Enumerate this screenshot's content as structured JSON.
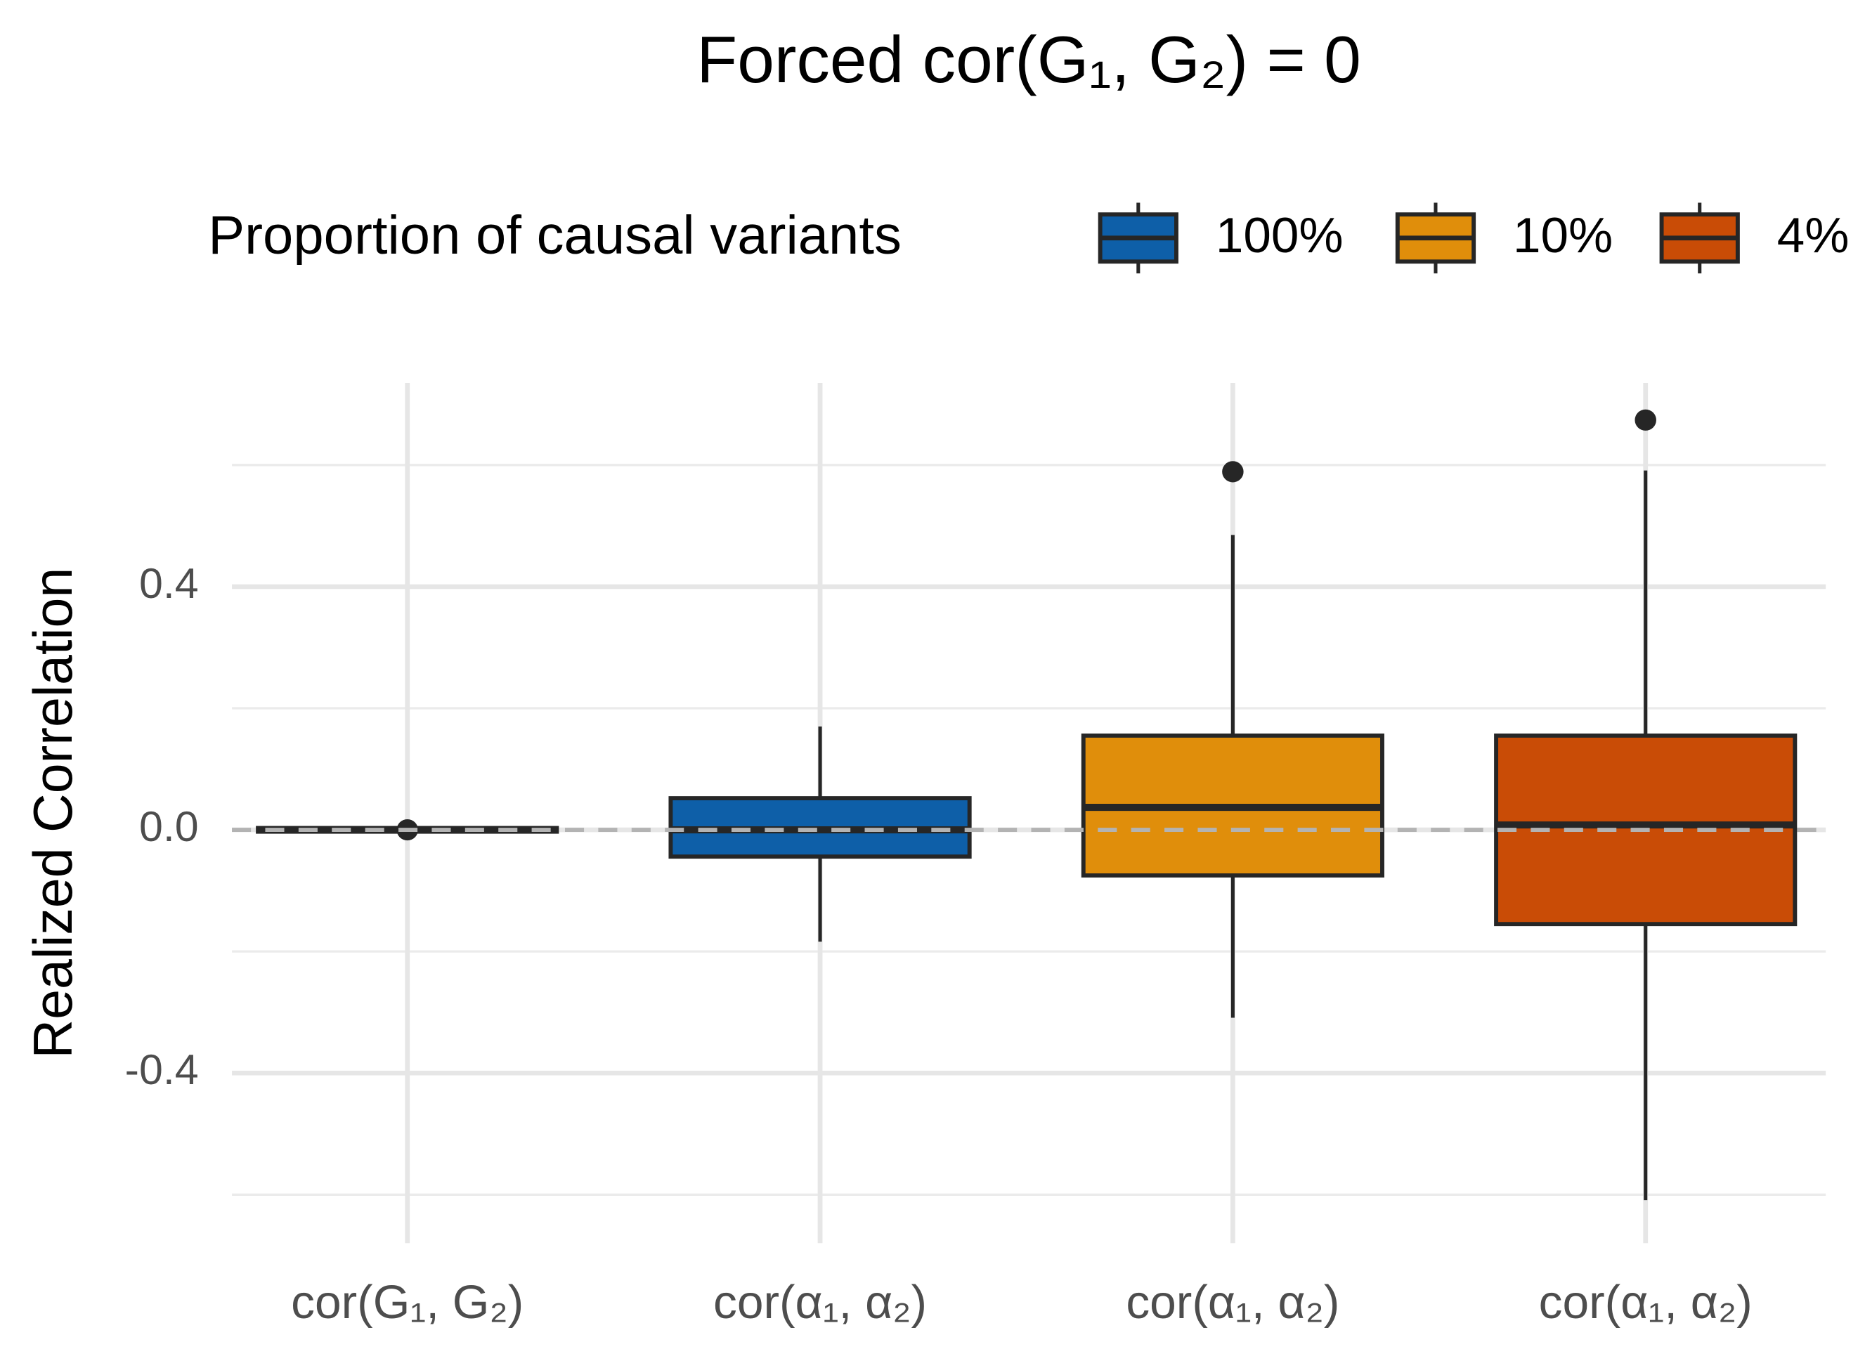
{
  "chart_data": {
    "type": "box",
    "title": "Forced cor(G₁, G₂) = 0",
    "y_label": "Realized Correlation",
    "legend_title": "Proportion of causal variants",
    "legend_entries": [
      {
        "name": "100%",
        "color": "#0e5fa8"
      },
      {
        "name": "10%",
        "color": "#e08e0b"
      },
      {
        "name": "4%",
        "color": "#c94c06"
      }
    ],
    "categories": [
      "cor(G₁, G₂)",
      "cor(α₁, α₂)",
      "cor(α₁, α₂)",
      "cor(α₁, α₂)"
    ],
    "boxes": [
      {
        "category": 0,
        "color": "#333333",
        "low": -0.003,
        "q1": -0.003,
        "median": 0.0,
        "q3": 0.003,
        "high": 0.003,
        "outliers": [
          0.0
        ]
      },
      {
        "category": 1,
        "color": "#0e5fa8",
        "low": -0.184,
        "q1": -0.044,
        "median": 0.0,
        "q3": 0.052,
        "high": 0.17,
        "outliers": []
      },
      {
        "category": 2,
        "color": "#e08e0b",
        "low": -0.309,
        "q1": -0.075,
        "median": 0.037,
        "q3": 0.155,
        "high": 0.485,
        "outliers": [
          0.589
        ]
      },
      {
        "category": 3,
        "color": "#c94c06",
        "low": -0.609,
        "q1": -0.155,
        "median": 0.008,
        "q3": 0.155,
        "high": 0.591,
        "outliers": [
          0.674
        ]
      }
    ],
    "ylim": [
      -0.67,
      0.735
    ],
    "yticks": [
      {
        "value": -0.4,
        "label": "-0.4"
      },
      {
        "value": 0,
        "label": "0.0"
      },
      {
        "value": 0.4,
        "label": "0.4"
      }
    ],
    "minor_yticks": [
      -0.6,
      -0.2,
      0.2,
      0.6
    ],
    "reference_line": 0,
    "grid": true
  }
}
